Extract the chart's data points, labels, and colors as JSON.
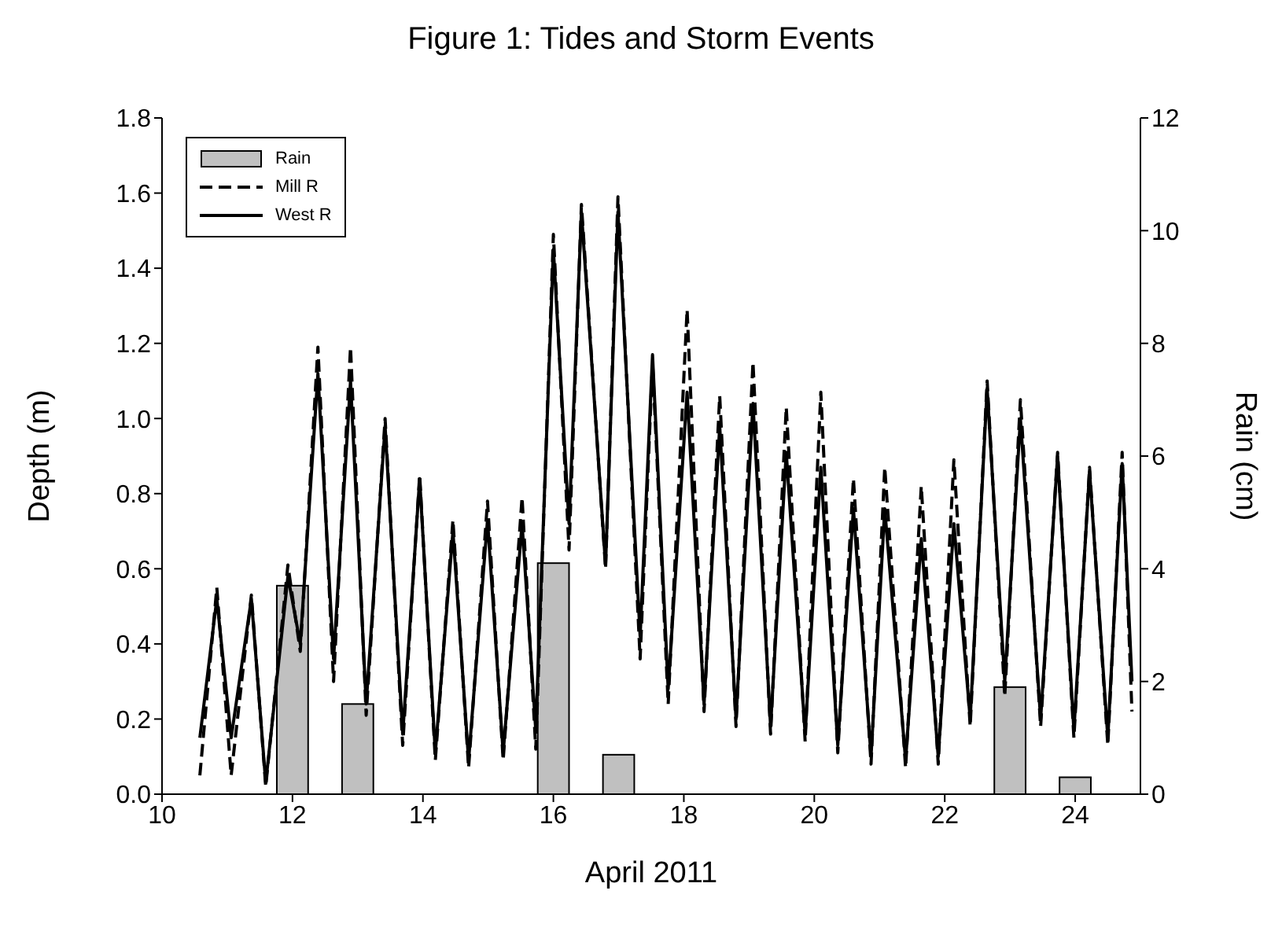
{
  "chart_data": {
    "type": "line",
    "title": "Figure 1: Tides and Storm Events",
    "xlabel": "April 2011",
    "ylabel": "Depth (m)",
    "y2label": "Rain (cm)",
    "xlim": [
      10,
      25
    ],
    "xticks": [
      10,
      12,
      14,
      16,
      18,
      20,
      22,
      24
    ],
    "ylim": [
      0,
      1.8
    ],
    "yticks": [
      {
        "value": 0,
        "label": "0.0"
      },
      {
        "value": 0.2,
        "label": "0.2"
      },
      {
        "value": 0.4,
        "label": "0.4"
      },
      {
        "value": 0.6,
        "label": "0.6"
      },
      {
        "value": 0.8,
        "label": "0.8"
      },
      {
        "value": 1,
        "label": "1.0"
      },
      {
        "value": 1.2,
        "label": "1.2"
      },
      {
        "value": 1.4,
        "label": "1.4"
      },
      {
        "value": 1.6,
        "label": "1.6"
      },
      {
        "value": 1.8,
        "label": "1.8"
      }
    ],
    "y2lim": [
      0,
      12
    ],
    "y2ticks": [
      0,
      2,
      4,
      6,
      8,
      10,
      12
    ],
    "legend": "top left",
    "grid": false,
    "series": [
      {
        "name": "Rain",
        "type": "bar",
        "axis": "y2",
        "color": "#c0c0c0",
        "x": [
          12,
          13,
          16,
          17,
          23,
          24
        ],
        "values": [
          3.7,
          1.6,
          4.1,
          0.7,
          1.9,
          0.3
        ]
      },
      {
        "name": "Mill R",
        "line_style": "dashed",
        "color": "#000000",
        "x": [
          10.58,
          10.84,
          11.06,
          11.37,
          11.59,
          11.93,
          12.12,
          12.39,
          12.63,
          12.89,
          13.13,
          13.42,
          13.69,
          13.95,
          14.19,
          14.46,
          14.7,
          14.99,
          15.23,
          15.52,
          15.73,
          16.0,
          16.24,
          16.43,
          16.8,
          16.99,
          17.33,
          17.52,
          17.76,
          18.05,
          18.31,
          18.55,
          18.8,
          19.06,
          19.33,
          19.57,
          19.86,
          20.1,
          20.36,
          20.6,
          20.87,
          21.08,
          21.4,
          21.64,
          21.9,
          22.14,
          22.39,
          22.65,
          22.92,
          23.16,
          23.47,
          23.73,
          23.98,
          24.22,
          24.5,
          24.72,
          24.87
        ],
        "values": [
          0.05,
          0.55,
          0.05,
          0.53,
          0.02,
          0.61,
          0.38,
          1.19,
          0.3,
          1.19,
          0.21,
          1.0,
          0.13,
          0.85,
          0.09,
          0.73,
          0.07,
          0.78,
          0.09,
          0.79,
          0.12,
          1.49,
          0.65,
          1.57,
          0.6,
          1.59,
          0.36,
          1.15,
          0.24,
          1.29,
          0.22,
          1.06,
          0.18,
          1.15,
          0.16,
          1.03,
          0.14,
          1.07,
          0.11,
          0.84,
          0.08,
          0.87,
          0.07,
          0.82,
          0.08,
          0.89,
          0.18,
          1.1,
          0.26,
          1.05,
          0.18,
          0.91,
          0.15,
          0.87,
          0.13,
          0.91,
          0.22
        ]
      },
      {
        "name": "West R",
        "line_style": "solid",
        "color": "#000000",
        "x": [
          10.58,
          10.84,
          11.06,
          11.37,
          11.59,
          11.93,
          12.12,
          12.39,
          12.63,
          12.89,
          13.13,
          13.42,
          13.69,
          13.95,
          14.19,
          14.46,
          14.7,
          14.99,
          15.23,
          15.52,
          15.73,
          16.0,
          16.24,
          16.43,
          16.8,
          16.99,
          17.33,
          17.52,
          17.76,
          18.05,
          18.31,
          18.55,
          18.8,
          19.06,
          19.33,
          19.57,
          19.86,
          20.1,
          20.36,
          20.6,
          20.87,
          21.08,
          21.4,
          21.64,
          21.9,
          22.14,
          22.39,
          22.65,
          22.92,
          23.16,
          23.47,
          23.73,
          23.98,
          24.22,
          24.5,
          24.72,
          24.87
        ],
        "values": [
          0.15,
          0.52,
          0.15,
          0.52,
          0.03,
          0.58,
          0.4,
          1.12,
          0.36,
          1.1,
          0.24,
          0.98,
          0.16,
          0.84,
          0.11,
          0.7,
          0.09,
          0.73,
          0.11,
          0.72,
          0.17,
          1.45,
          0.72,
          1.55,
          0.61,
          1.55,
          0.42,
          1.17,
          0.28,
          1.07,
          0.24,
          0.98,
          0.2,
          1.04,
          0.18,
          0.91,
          0.16,
          0.87,
          0.13,
          0.76,
          0.1,
          0.76,
          0.09,
          0.68,
          0.1,
          0.72,
          0.2,
          1.08,
          0.3,
          1.0,
          0.2,
          0.9,
          0.17,
          0.86,
          0.15,
          0.88,
          0.3
        ]
      }
    ]
  }
}
